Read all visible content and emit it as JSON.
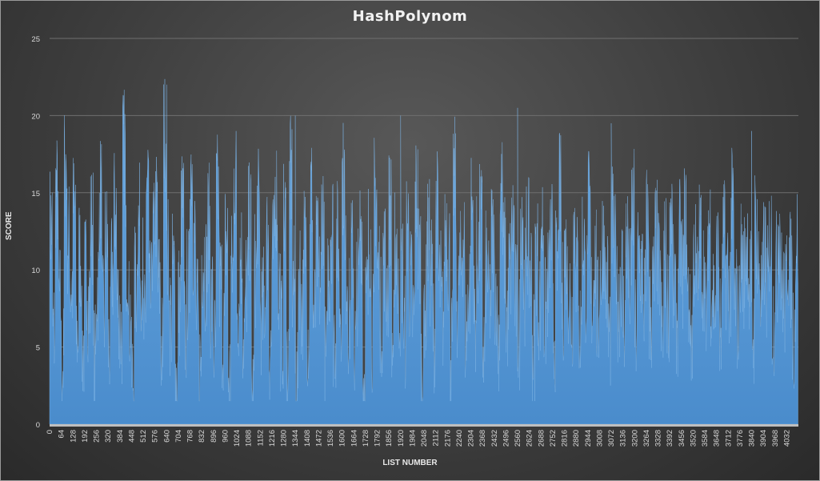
{
  "chart_data": {
    "type": "area",
    "title": "HashPolynom",
    "xlabel": "LIST NUMBER",
    "ylabel": "SCORE",
    "ylim": [
      0,
      25
    ],
    "yticks": [
      0,
      5,
      10,
      15,
      20,
      25
    ],
    "xlim": [
      0,
      4096
    ],
    "xticks": [
      0,
      64,
      128,
      192,
      256,
      320,
      384,
      448,
      512,
      576,
      640,
      704,
      768,
      832,
      896,
      960,
      1024,
      1088,
      1152,
      1216,
      1280,
      1344,
      1408,
      1472,
      1536,
      1600,
      1664,
      1728,
      1792,
      1856,
      1920,
      1984,
      2048,
      2112,
      2176,
      2240,
      2304,
      2368,
      2432,
      2496,
      2560,
      2624,
      2688,
      2752,
      2816,
      2880,
      2944,
      3008,
      3072,
      3136,
      3200,
      3264,
      3328,
      3392,
      3456,
      3520,
      3584,
      3648,
      3712,
      3776,
      3840,
      3904,
      3968,
      4032
    ],
    "grid": true,
    "legend": "none",
    "series": [
      {
        "color": "#5b9bd5",
        "step": 16,
        "values": [
          13,
          6,
          15,
          8,
          4,
          17,
          12,
          9,
          14,
          6,
          11,
          5,
          10,
          8,
          13,
          4,
          9,
          15,
          7,
          12,
          5,
          10,
          14,
          8,
          6,
          18,
          11,
          7,
          3,
          9,
          13,
          10,
          6,
          16,
          8,
          12,
          14,
          9,
          5,
          19,
          11,
          7,
          10,
          3,
          8,
          14,
          6,
          9,
          17,
          12,
          7,
          4,
          11,
          10,
          13,
          8,
          5,
          15,
          9,
          6,
          12,
          3,
          10,
          16,
          8,
          11,
          6,
          9,
          13,
          2,
          10,
          14,
          7,
          8,
          12,
          5,
          11,
          15,
          9,
          6,
          13,
          4,
          16,
          9,
          2,
          10,
          8,
          12,
          6,
          15,
          7,
          11,
          9,
          14,
          4,
          10,
          13,
          6,
          12,
          8,
          16,
          10,
          7,
          11,
          5,
          9,
          13,
          3,
          8,
          12,
          6,
          15,
          10,
          7,
          11,
          9,
          14,
          5,
          12,
          8,
          10,
          6,
          13,
          9,
          7,
          15,
          11,
          4,
          8,
          12,
          10,
          6,
          14,
          9,
          7,
          13,
          11,
          5,
          16,
          8,
          10,
          12,
          6,
          9,
          14,
          7,
          11,
          13,
          5,
          10,
          8,
          12,
          9,
          6,
          15,
          11,
          7,
          10,
          13,
          8,
          6,
          14,
          9,
          12,
          10,
          5,
          11,
          8,
          13,
          7,
          9,
          12,
          6,
          10,
          15,
          8,
          11,
          9,
          7,
          13,
          10,
          6,
          12,
          9,
          14,
          8,
          11,
          7,
          10,
          12,
          9,
          6,
          13,
          11,
          8,
          10,
          7,
          12,
          9,
          14,
          6,
          11,
          10,
          8,
          13,
          7,
          9,
          12,
          10,
          6,
          11,
          8,
          14,
          9,
          7,
          12,
          10,
          13,
          8,
          6,
          11,
          9,
          12,
          10,
          7,
          13,
          9,
          8,
          11,
          6,
          12,
          10,
          9,
          14,
          8,
          7,
          11,
          10,
          12,
          9,
          6,
          13,
          10,
          8,
          11,
          9,
          12,
          7,
          10,
          13,
          9,
          8,
          11,
          10,
          6,
          12
        ]
      }
    ],
    "peaks": [
      [
        640,
        22
      ],
      [
        2560,
        20.5
      ],
      [
        1920,
        20
      ],
      [
        1344,
        20
      ],
      [
        3072,
        19.5
      ],
      [
        3840,
        19
      ]
    ]
  }
}
